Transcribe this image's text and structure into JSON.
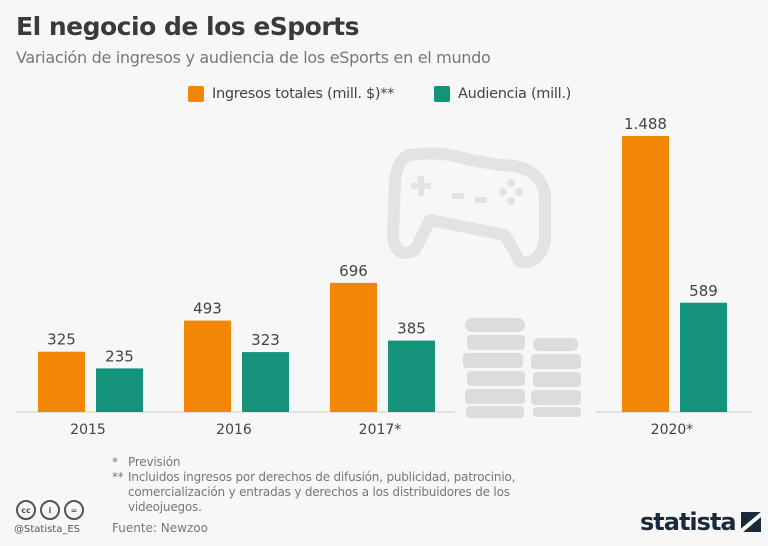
{
  "title": "El negocio de los eSports",
  "subtitle": "Variación de ingresos y audiencia de los eSports en el mundo",
  "chart_data": {
    "type": "bar",
    "categories": [
      "2015",
      "2016",
      "2017*",
      "2020*"
    ],
    "series": [
      {
        "name": "Ingresos totales (mill. $)**",
        "color": "#f28705",
        "values": [
          325,
          493,
          696,
          1488
        ],
        "labels": [
          "325",
          "493",
          "696",
          "1.488"
        ]
      },
      {
        "name": "Audiencia (mill.)",
        "color": "#14937a",
        "values": [
          235,
          323,
          385,
          589
        ],
        "labels": [
          "235",
          "323",
          "385",
          "589"
        ]
      }
    ],
    "ylim": [
      0,
      1488
    ],
    "grid": false,
    "legend": "top-center"
  },
  "notes": [
    {
      "mark": "*",
      "text": "Previsión"
    },
    {
      "mark": "**",
      "text": "Incluidos ingresos por derechos de difusión, publicidad, patrocinio, comercialización y entradas y derechos a los distribuidores de los videojuegos."
    }
  ],
  "source": "Fuente: Newzoo",
  "handle": "@Statista_ES",
  "brand": "statista",
  "icons": [
    "gamepad-icon",
    "coins-icon",
    "cc-icon",
    "by-icon",
    "nd-icon",
    "statista-logo-icon"
  ]
}
